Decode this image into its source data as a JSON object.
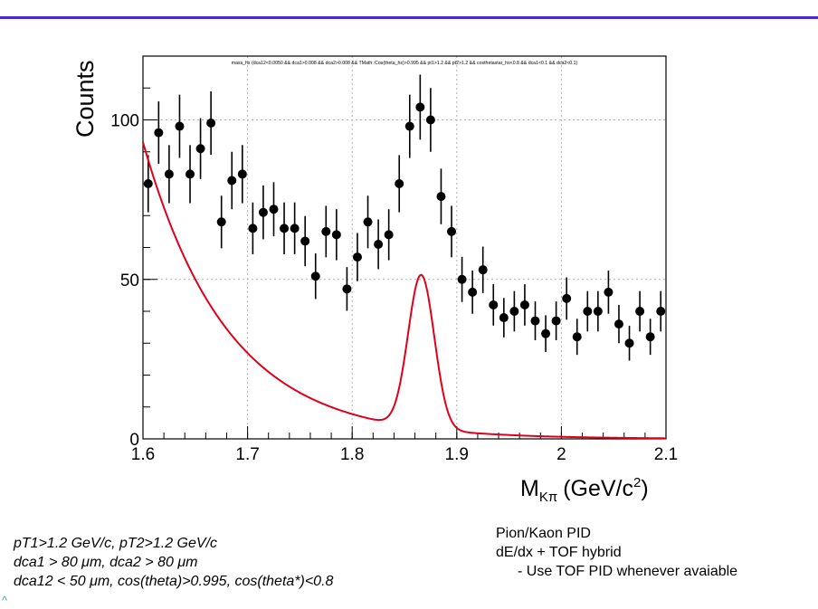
{
  "colors": {
    "top_rule": "#4b2ad1",
    "points": "#000000",
    "fit": "#e0001b",
    "grid": "#b0b0b0",
    "corner_mark": "#4aa3b8"
  },
  "chart_data": {
    "type": "scatter",
    "cut_label": "mass_hs (dca12<0.0050 && dca1>0.008 && dca2>0.008 && TMath::Cos(theta_hs)>0.995 && pt1>1.2 && pt2>1.2 && costhetastar_hs<0.8 && dca1<0.1 && dca2<0.1)",
    "ylabel": "Counts",
    "xlabel_main": "M",
    "xlabel_sub": "Kπ",
    "xlabel_unit": "(GeV/c",
    "xlabel_sup": "2",
    "xlabel_close": ")",
    "xlim": [
      1.6,
      2.1
    ],
    "ylim": [
      0,
      120
    ],
    "x_ticks": [
      "1.6",
      "1.7",
      "1.8",
      "1.9",
      "2",
      "2.1"
    ],
    "y_ticks": [
      "0",
      "50",
      "100"
    ],
    "grid": true,
    "series": [
      {
        "type": "points-with-errors",
        "x": [
          1.605,
          1.615,
          1.625,
          1.635,
          1.645,
          1.655,
          1.665,
          1.675,
          1.685,
          1.695,
          1.705,
          1.715,
          1.725,
          1.735,
          1.745,
          1.755,
          1.765,
          1.775,
          1.785,
          1.795,
          1.805,
          1.815,
          1.825,
          1.835,
          1.845,
          1.855,
          1.865,
          1.875,
          1.885,
          1.895,
          1.905,
          1.915,
          1.925,
          1.935,
          1.945,
          1.955,
          1.965,
          1.975,
          1.985,
          1.995,
          2.005,
          2.015,
          2.025,
          2.035,
          2.045,
          2.055,
          2.065,
          2.075,
          2.085,
          2.095
        ],
        "y": [
          80,
          96,
          83,
          98,
          83,
          91,
          99,
          68,
          81,
          83,
          66,
          71,
          72,
          66,
          66,
          62,
          51,
          65,
          64,
          47,
          57,
          68,
          61,
          64,
          80,
          98,
          104,
          100,
          76,
          65,
          50,
          46,
          53,
          42,
          38,
          40,
          42,
          37,
          33,
          37,
          44,
          32,
          40,
          40,
          46,
          36,
          30,
          40,
          32,
          40
        ]
      },
      {
        "type": "fit-curve",
        "background": {
          "a": 93,
          "b": 12.4,
          "x0": 1.6
        },
        "peak": {
          "amp": 48,
          "mean": 1.866,
          "sigma": 0.0125
        }
      }
    ]
  },
  "notes_left": [
    "pT1>1.2 GeV/c, pT2>1.2 GeV/c",
    "dca1 > 80 μm, dca2 > 80 μm",
    "dca12 < 50 μm, cos(theta)>0.995, cos(theta*)<0.8"
  ],
  "notes_right": [
    "Pion/Kaon PID",
    "dE/dx + TOF hybrid",
    "- Use TOF PID whenever avaiable"
  ],
  "corner_mark": "^"
}
